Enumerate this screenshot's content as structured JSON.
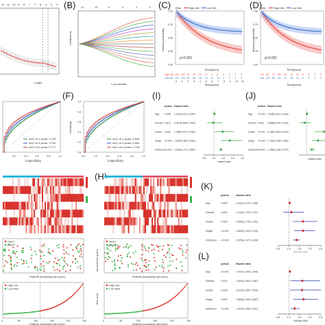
{
  "labels": {
    "B": "(B)",
    "C": "(C)",
    "D": "(D)",
    "F": "(F)",
    "H": "(H)",
    "I": "(I)",
    "J": "(J)",
    "K": "(K)",
    "L": "(L)"
  },
  "km_c": {
    "legend_risk": "Risk",
    "legend_high": "High risk",
    "legend_low": "Low risk",
    "ylabel": "Survival probability",
    "xlabel": "Time(years)",
    "pvalue": "p<0.001",
    "xticks": [
      "0",
      "1",
      "2",
      "3",
      "4",
      "5",
      "6",
      "7",
      "8",
      "9",
      "10",
      "11"
    ],
    "yticks": [
      "0.00",
      "0.25",
      "0.50",
      "0.75",
      "1.00"
    ],
    "table_label": "Risk",
    "row_high_name": "High risk",
    "row_low_name": "Low risk",
    "row_high": [
      "133",
      "102",
      "62",
      "40",
      "22",
      "17",
      "9",
      "6",
      "4",
      "3",
      "1",
      "0"
    ],
    "row_low": [
      "133",
      "130",
      "96",
      "66",
      "48",
      "33",
      "22",
      "14",
      "9",
      "3",
      "3",
      "0"
    ],
    "table_xlabel": "Time(years)"
  },
  "km_d": {
    "legend_risk": "Risk",
    "legend_high": "High risk",
    "legend_low": "Low risk",
    "ylabel": "Survival probability",
    "xlabel": "Time(years)",
    "pvalue": "p<0.001",
    "yticks": [
      "0.00",
      "0.25",
      "0.50",
      "0.75",
      "1.00"
    ],
    "table_label": "Risk",
    "row_high_name": "High risk",
    "row_low_name": "Low risk",
    "row_high": [
      "125",
      "98",
      "70",
      "35",
      "25",
      "14",
      "13",
      "8",
      "6",
      "3",
      "2"
    ],
    "row_low": [
      "125",
      "107",
      "85",
      "64",
      "37",
      "28",
      "14",
      "9",
      "5",
      "3",
      "0"
    ],
    "table_xlabel": "Time(years)"
  },
  "roc_e": {
    "legend": [
      "AUC at 1 years: 0.729",
      "AUC at 3 years: 0.762",
      "AUC at 5 years: 0.777"
    ],
    "xlabel": "1-Specificity",
    "xticks": [
      "0.2",
      "0.4",
      "0.6",
      "0.8",
      "1.0"
    ]
  },
  "roc_f": {
    "ylabel": "Sensitivity",
    "legend": [
      "AUC at 1 years: 0.690",
      "AUC at 3 years: 0.664",
      "AUC at 5 years: 0.708"
    ],
    "xlabel": "1-Specificity",
    "yticks": [
      "0.0",
      "0.2",
      "0.4",
      "0.6",
      "0.8",
      "1.0"
    ],
    "xticks": [
      "0.0",
      "0.2",
      "0.4",
      "0.6",
      "0.8",
      "1.0"
    ]
  },
  "forest_i": {
    "header_p": "pvalue",
    "header_hr": "Hazard ratio",
    "rows": [
      {
        "name": "Age",
        "p": "0.044",
        "hr": "1.024(1.001-1.049)"
      },
      {
        "name": "Gender",
        "p": "0.872",
        "hr": "0.967(0.648-1.443)"
      },
      {
        "name": "Grade",
        "p": "0.030",
        "hr": "1.460(1.037-2.055)"
      },
      {
        "name": "Stage",
        "p": "<0.001",
        "hr": "1.828(1.360-2.458)"
      },
      {
        "name": "riskScore",
        "p": "<0.001",
        "hr": "1.364(1.271-1.380)"
      }
    ],
    "xlabel": "Hazard ratio",
    "xticks": [
      "0.5",
      "1.0",
      "1.5",
      "2.0",
      "2.5"
    ]
  },
  "forest_j": {
    "header_p": "pvalue",
    "header_hr": "Hazard ratio",
    "rows": [
      {
        "name": "Age",
        "p": "<0.001",
        "hr": "1.035(1.001-1.053)"
      },
      {
        "name": "Gender",
        "p": "0.561",
        "hr": "0.868(0.578-1.304)"
      },
      {
        "name": "Grade",
        "p": "<0.001",
        "hr": "2.166(1.551-3.026)"
      },
      {
        "name": "Stage",
        "p": "<0.001",
        "hr": "1.766(1.365-2.286)"
      },
      {
        "name": "riskScore",
        "p": "<0.001",
        "hr": "1.356(1.166-1.577)"
      }
    ],
    "xlabel": "Hazard ratio"
  },
  "forest_k": {
    "header_p": "pvalue",
    "header_hr": "Hazard ratio",
    "rows": [
      {
        "name": "Age",
        "p": "0.004",
        "hr": "1.031(1.010-1.053)"
      },
      {
        "name": "Gender",
        "p": "0.629",
        "hr": "1.111(0.726-1.700)"
      },
      {
        "name": "Grade",
        "p": "0.004",
        "hr": "1.655(1.176-2.331)"
      },
      {
        "name": "Stage",
        "p": "<0.001",
        "hr": "1.664(1.242-2.229)"
      },
      {
        "name": "riskScore",
        "p": "<0.001",
        "hr": "1.355(1.197-1.534)"
      }
    ],
    "xlabel": "Hazard ratio",
    "xticks": [
      "0.5",
      "1.0",
      "1.5",
      "2.0",
      "2.5"
    ]
  },
  "forest_l": {
    "header_p": "pvalue",
    "header_hr": "Hazard ratio",
    "rows": [
      {
        "name": "Age",
        "p": "<0.001",
        "hr": "1.047(1.025-1.069)"
      },
      {
        "name": "Gender",
        "p": "0.023",
        "hr": "1.624(1.069-2.467)"
      },
      {
        "name": "Grade",
        "p": "0.033",
        "hr": "1.612(1.039-2.502)"
      },
      {
        "name": "Stage",
        "p": "0.003",
        "hr": "1.682(1.195-2.367)"
      },
      {
        "name": "riskScore",
        "p": "<0.001",
        "hr": "1.267(1.065-1.507)"
      }
    ],
    "xlabel": "Hazard ratio",
    "xticks": [
      "0.5",
      "1.0",
      "1.5",
      "2.0",
      "2.5"
    ]
  },
  "risk_g": {
    "legend_dead": "Dead",
    "legend_alive": "Alive",
    "xlabel": "Patients (increasing risk score)",
    "legend_high": "High risk",
    "legend_low": "Low Risk",
    "xticks": [
      "0",
      "50",
      "100",
      "150",
      "200",
      "250"
    ],
    "xlabel2": "Patients (increasing risk score)"
  },
  "risk_h": {
    "legend_dead": "Dead",
    "legend_alive": "Alive",
    "ylabel": "Survival time (years)",
    "xlabel": "Patients (increasing risk score)",
    "legend_high": "High risk",
    "legend_low": "Low Risk",
    "ylabel2": "Risk score",
    "xticks": [
      "0",
      "50",
      "100",
      "150",
      "200",
      "250"
    ],
    "xlabel2": "Patients (increasing risk score)"
  },
  "lasso_b": {
    "top_ticks": [
      "20",
      "13",
      "9",
      "5",
      "2",
      "0"
    ],
    "ylabel": "Coefficients",
    "xlabel": "Log Lambda"
  },
  "lasso_a": {
    "top_ticks": [
      "12",
      "11",
      "10",
      "9",
      "8",
      "7",
      "7",
      "6",
      "4",
      "2",
      "1"
    ],
    "xlabel": "Log(λ)"
  },
  "colors": {
    "high": "#e8483f",
    "low": "#3c6fd1",
    "high_band": "#f4a9a3",
    "low_band": "#a9c0ef",
    "roc1": "#2d8c3c",
    "roc3": "#2f56c9",
    "roc5": "#d33a2c",
    "dead": "#d9342b",
    "alive": "#3ab54a",
    "forest_green": "#3aa24a",
    "forest_red": "#d22d2d",
    "forest_blue": "#2f3fb0"
  }
}
